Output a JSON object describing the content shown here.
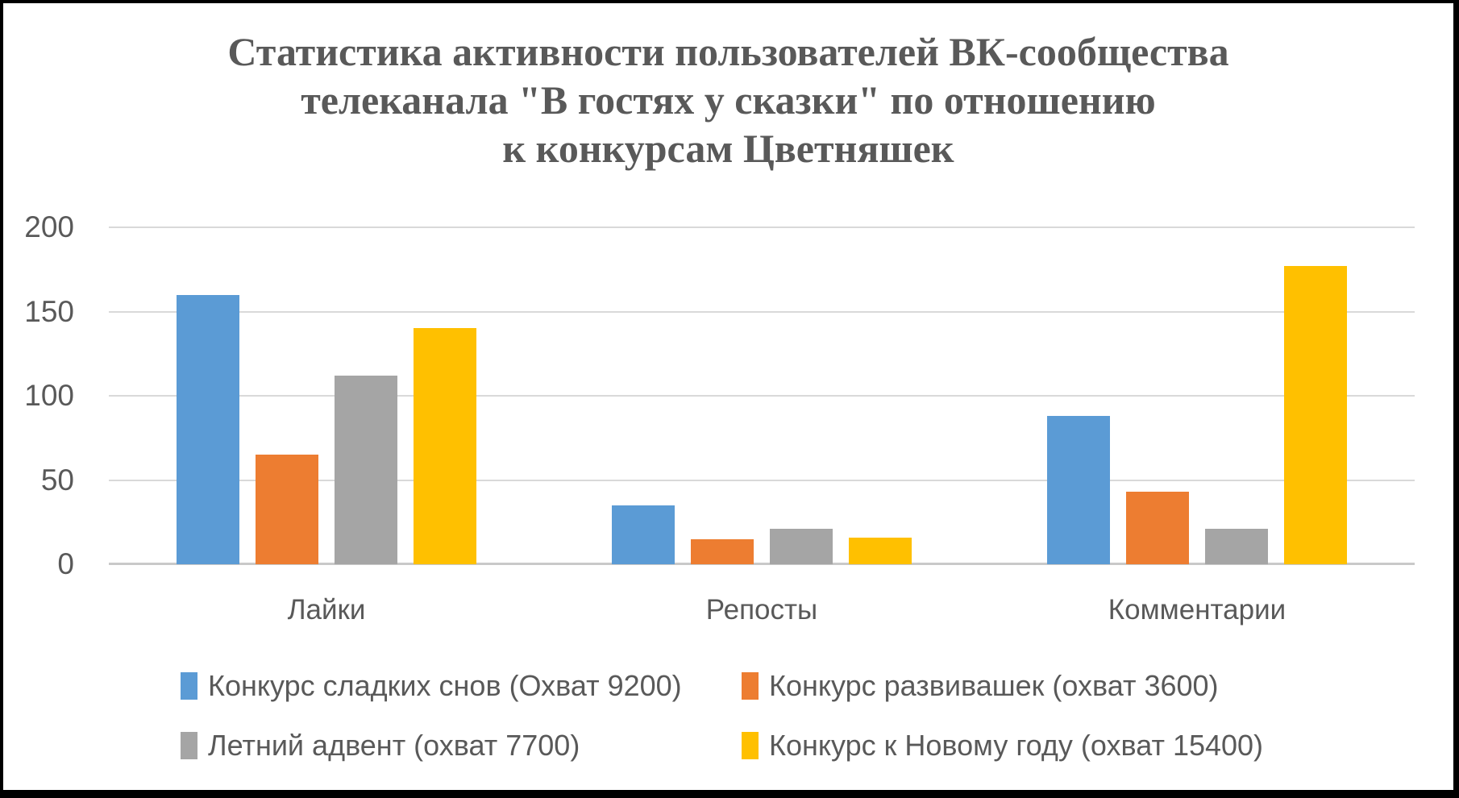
{
  "title": {
    "lines": [
      "Статистика активности пользователей ВК-сообщества",
      "телеканала \"В гостях у сказки\" по отношению",
      "к конкурсам Цветняшек"
    ]
  },
  "chart_data": {
    "type": "bar",
    "categories": [
      "Лайки",
      "Репосты",
      "Комментарии"
    ],
    "series": [
      {
        "name": "Конкурс сладких снов (Охват 9200)",
        "color": "#5B9BD5",
        "values": [
          160,
          35,
          88
        ]
      },
      {
        "name": "Конкурс развивашек (охват 3600)",
        "color": "#ED7D31",
        "values": [
          65,
          15,
          43
        ]
      },
      {
        "name": "Летний адвент (охват 7700)",
        "color": "#A5A5A5",
        "values": [
          112,
          21,
          21
        ]
      },
      {
        "name": "Конкурс к Новому году (охват 15400)",
        "color": "#FFC000",
        "values": [
          140,
          16,
          177
        ]
      }
    ],
    "ylim": [
      0,
      200
    ],
    "yticks": [
      0,
      50,
      100,
      150,
      200
    ],
    "grid": true,
    "legend_position": "bottom"
  },
  "colors": {
    "text": "#595959",
    "gridline": "#D9D9D9",
    "axis": "#C9C9C9",
    "frame_border": "#000000",
    "background": "#FFFFFF"
  }
}
